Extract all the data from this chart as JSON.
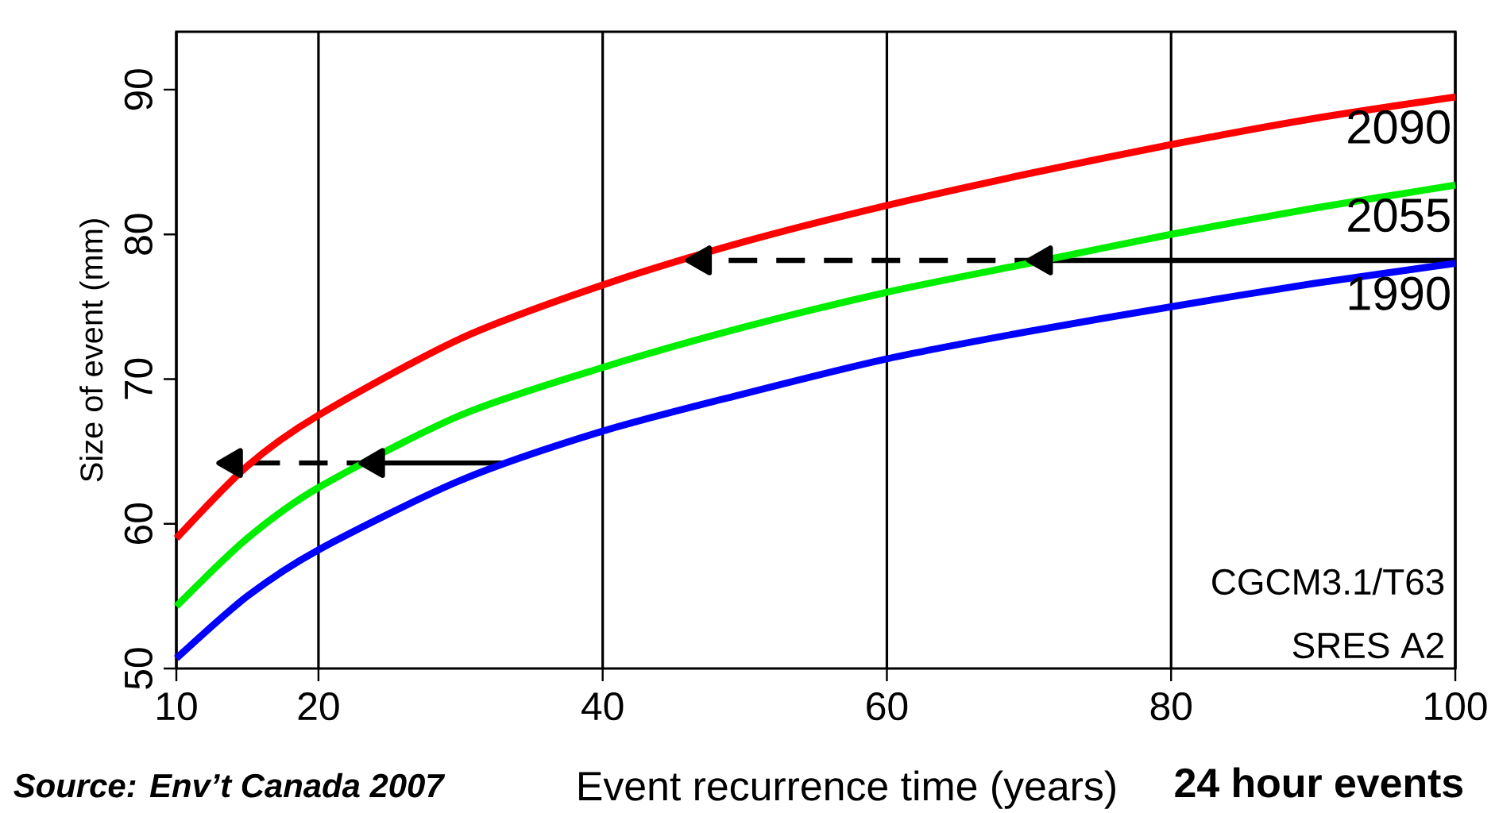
{
  "chart_data": {
    "type": "line",
    "xlabel": "Event recurrence time (years)",
    "ylabel": "Size of event (mm)",
    "x": [
      10,
      15,
      20,
      30,
      40,
      50,
      60,
      70,
      80,
      90,
      100
    ],
    "series": [
      {
        "name": "2090",
        "color": "#ff0000",
        "values": [
          59,
          64,
          67.5,
          72.8,
          76.5,
          79.5,
          82,
          84.2,
          86.2,
          88,
          89.5
        ]
      },
      {
        "name": "2055",
        "color": "#00ee00",
        "values": [
          54.3,
          59,
          62.5,
          67.5,
          70.8,
          73.6,
          76,
          78,
          80,
          81.8,
          83.4
        ]
      },
      {
        "name": "1990",
        "color": "#0000ff",
        "values": [
          50.7,
          55,
          58.2,
          63,
          66.4,
          69,
          71.4,
          73.3,
          75,
          76.6,
          78
        ]
      },
      {
        "color": "#000000",
        "x": [
          100,
          71
        ],
        "values": [
          78.2,
          78.2
        ],
        "line_style": "solid",
        "marker": "triangle"
      },
      {
        "color": "#000000",
        "x": [
          71,
          47
        ],
        "values": [
          78.2,
          78.2
        ],
        "line_style": "dashed",
        "marker": "triangle"
      },
      {
        "color": "#000000",
        "x": [
          33,
          24
        ],
        "values": [
          64.2,
          64.2
        ],
        "line_style": "solid",
        "marker": "triangle"
      },
      {
        "color": "#000000",
        "x": [
          24,
          14
        ],
        "values": [
          64.2,
          64.2
        ],
        "line_style": "dashed",
        "marker": "triangle"
      }
    ],
    "xlim": [
      10,
      100
    ],
    "ylim": [
      50,
      94
    ],
    "xticks": [
      10,
      20,
      40,
      60,
      80,
      100
    ],
    "yticks": [
      50,
      60,
      70,
      80,
      90
    ],
    "grid": "x",
    "marker": "none",
    "annotations": [
      "CGCM3.1/T63",
      "SRES A2",
      "Source:  Env’t Canada 2007",
      "24 hour events"
    ]
  }
}
